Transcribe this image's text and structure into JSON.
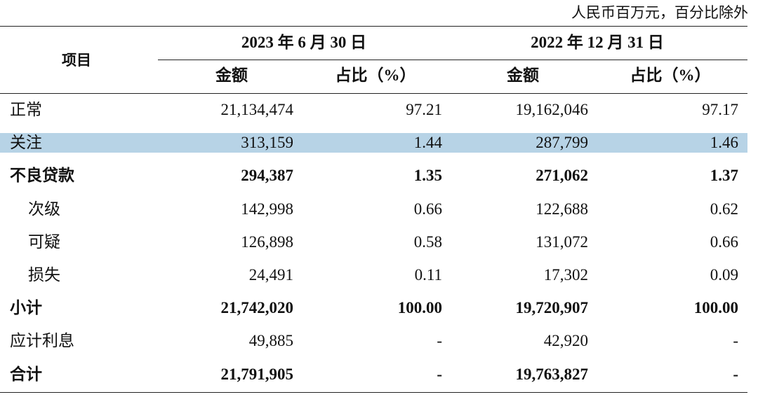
{
  "note": "人民币百万元，百分比除外",
  "header": {
    "item": "项目",
    "groups": [
      "2023 年 6 月 30 日",
      "2022 年 12 月 31 日"
    ],
    "subheaders": [
      "金额",
      "占比（%）",
      "金额",
      "占比（%）"
    ]
  },
  "table": {
    "rows": [
      [
        "正常",
        "21,134,474",
        "97.21",
        "19,162,046",
        "97.17"
      ],
      [
        "关注",
        "313,159",
        "1.44",
        "287,799",
        "1.46"
      ],
      [
        "不良贷款",
        "294,387",
        "1.35",
        "271,062",
        "1.37"
      ],
      [
        "次级",
        "142,998",
        "0.66",
        "122,688",
        "0.62"
      ],
      [
        "可疑",
        "126,898",
        "0.58",
        "131,072",
        "0.66"
      ],
      [
        "损失",
        "24,491",
        "0.11",
        "17,302",
        "0.09"
      ],
      [
        "小计",
        "21,742,020",
        "100.00",
        "19,720,907",
        "100.00"
      ],
      [
        "应计利息",
        "49,885",
        "-",
        "42,920",
        "-"
      ],
      [
        "合计",
        "21,791,905",
        "-",
        "19,763,827",
        "-"
      ]
    ]
  }
}
